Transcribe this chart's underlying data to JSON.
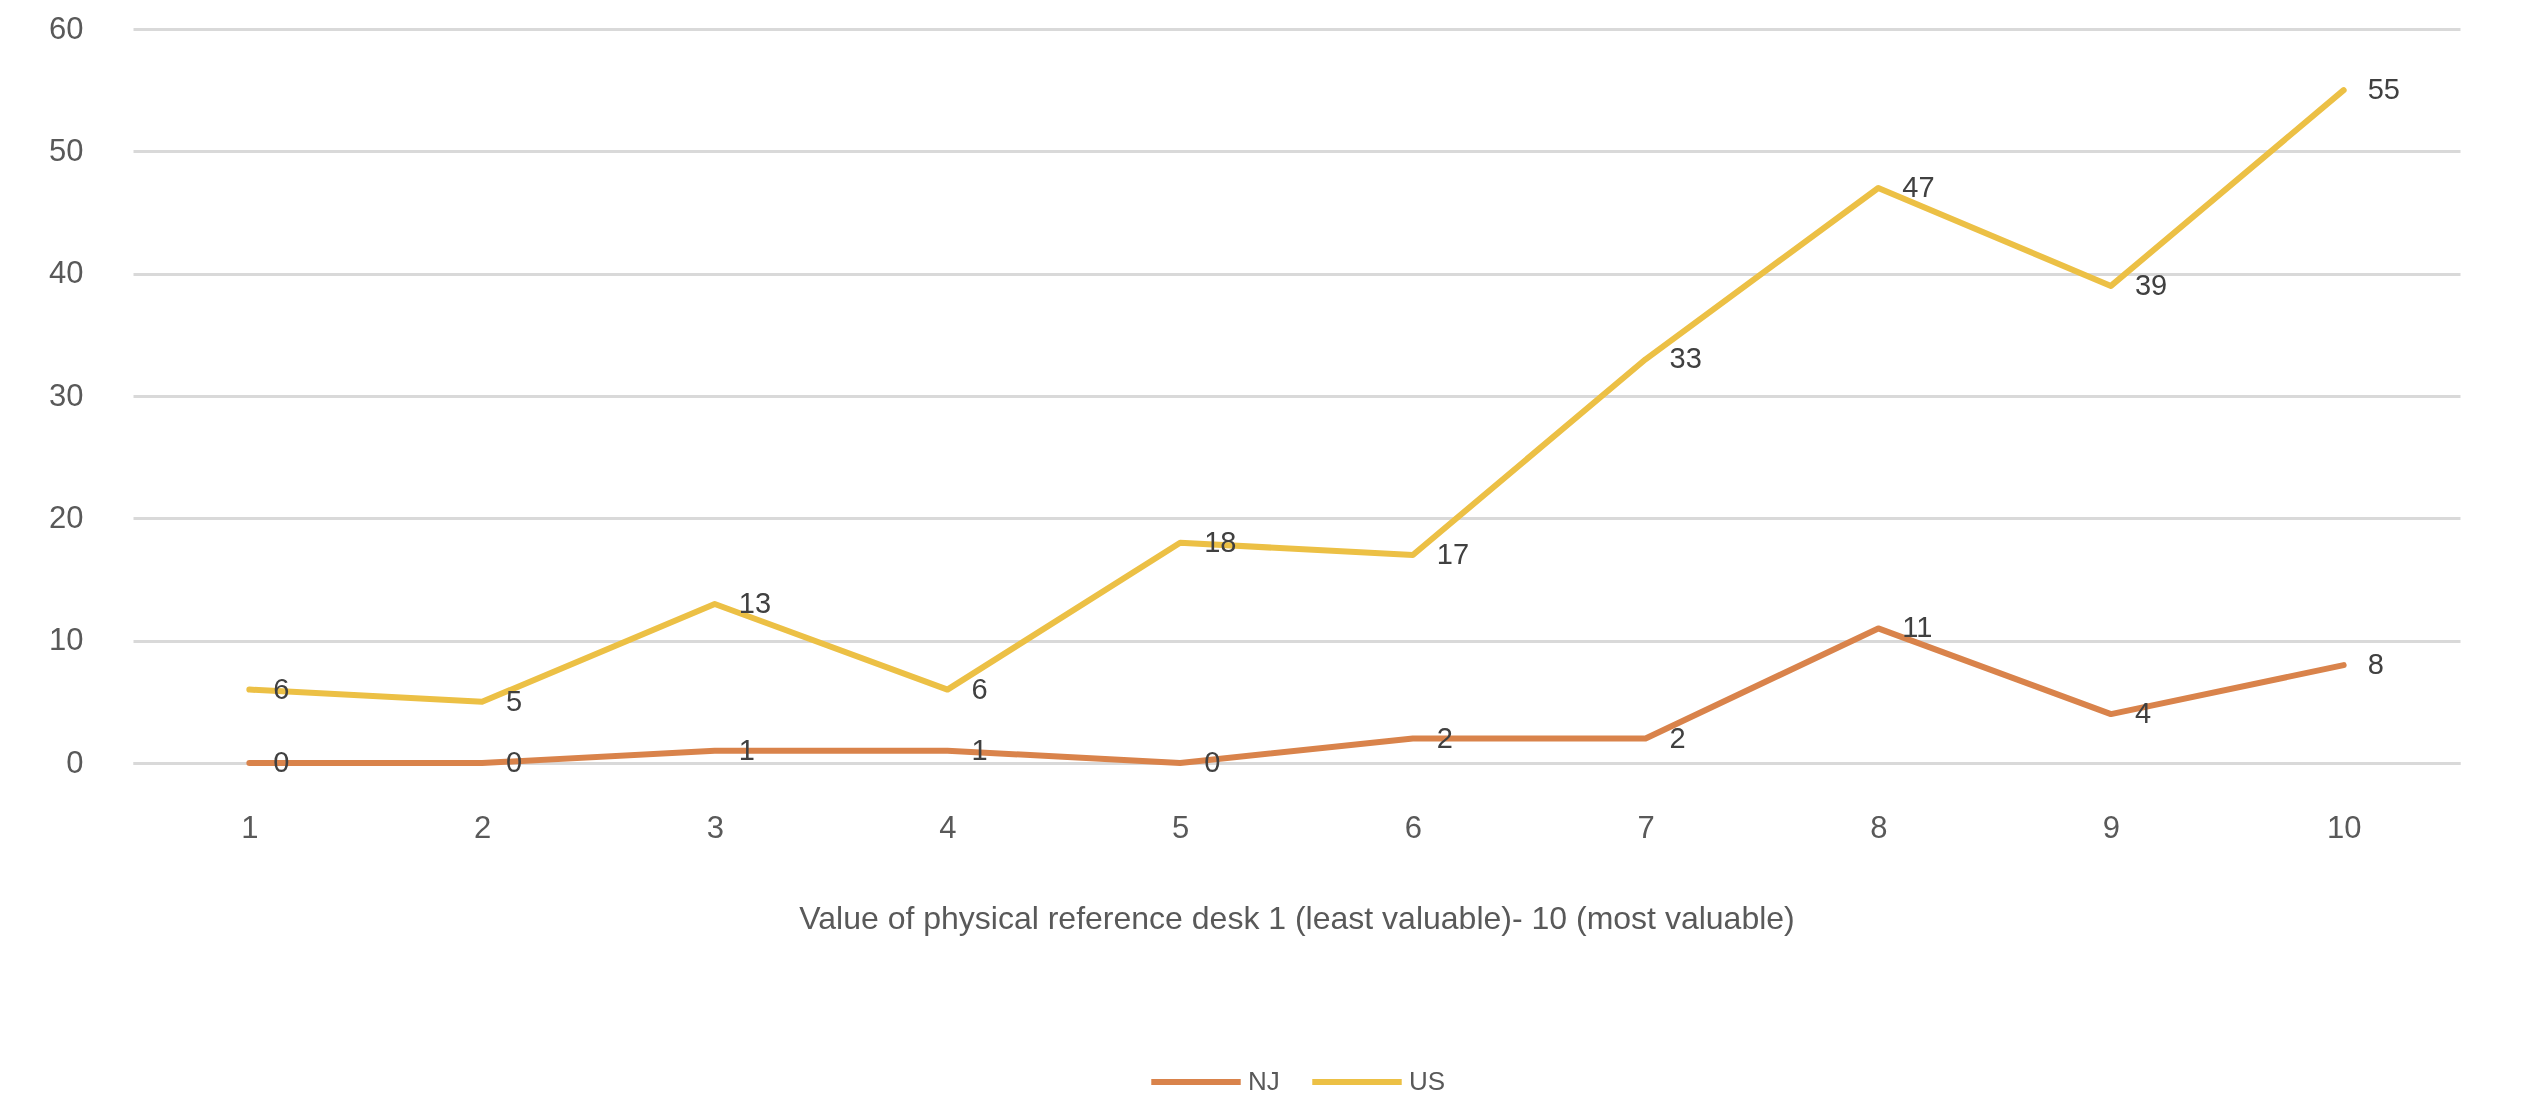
{
  "chart_data": {
    "type": "line",
    "xlabel": "Value of physical reference desk 1 (least valuable)- 10 (most valuable)",
    "categories": [
      "1",
      "2",
      "3",
      "4",
      "5",
      "6",
      "7",
      "8",
      "9",
      "10"
    ],
    "series": [
      {
        "name": "NJ",
        "color": "#d9834b",
        "values": [
          0,
          0,
          1,
          1,
          0,
          2,
          2,
          11,
          4,
          8
        ]
      },
      {
        "name": "US",
        "color": "#ecc045",
        "values": [
          6,
          5,
          13,
          6,
          18,
          17,
          33,
          47,
          39,
          55
        ]
      }
    ],
    "ylim": [
      0,
      60
    ],
    "yticks": [
      0,
      10,
      20,
      30,
      40,
      50,
      60
    ],
    "grid": "y",
    "legend": "bottom",
    "data_labels": true,
    "marker": "none"
  }
}
